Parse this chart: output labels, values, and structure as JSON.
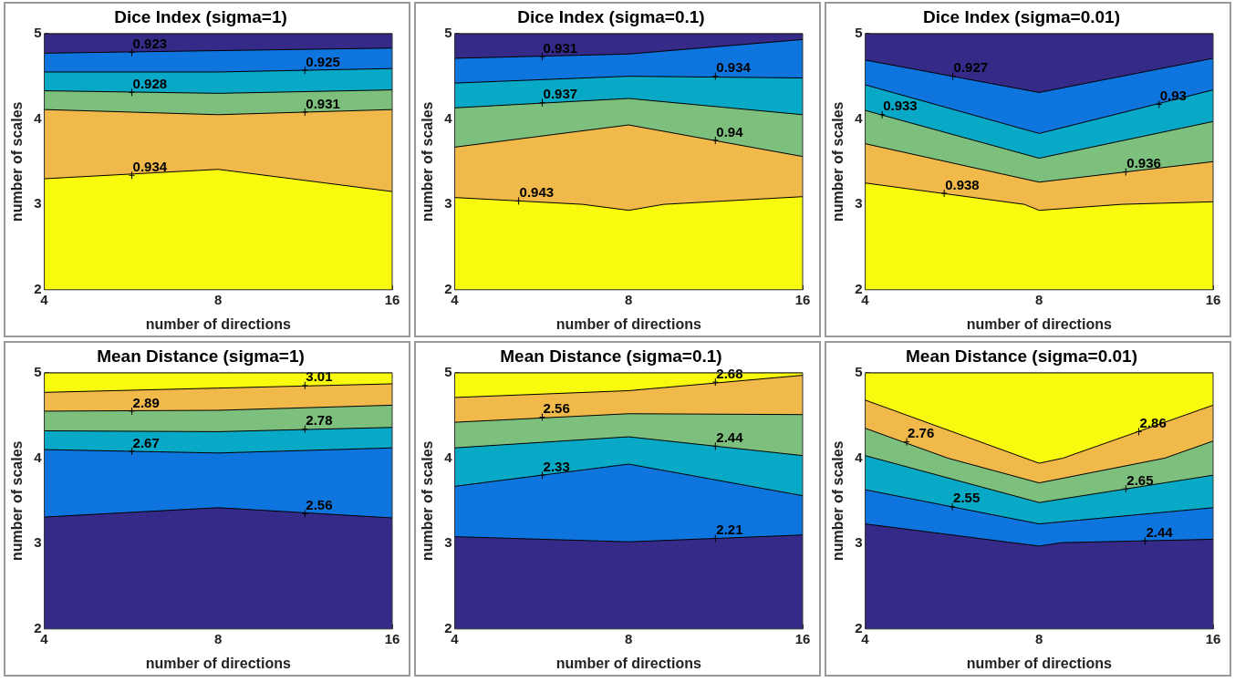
{
  "chart_data": [
    {
      "type": "area",
      "title": "Dice Index (sigma=1)",
      "xlabel": "number of directions",
      "ylabel": "number of scales",
      "log": "x",
      "xlim": [
        4,
        16
      ],
      "xticks": [
        4,
        8,
        16
      ],
      "ylim": [
        2,
        5
      ],
      "yticks": [
        2,
        3,
        4,
        5
      ],
      "grid": false,
      "legend": false,
      "series": [
        {
          "color": "#f9fb0e",
          "x": [
            4,
            8,
            16
          ],
          "values": [
            3.3,
            3.41,
            3.15
          ]
        },
        {
          "color": "#f1b84a",
          "x": [
            4,
            8,
            16
          ],
          "values": [
            4.11,
            4.05,
            4.11
          ]
        },
        {
          "color": "#7dbf7c",
          "x": [
            4,
            8,
            16
          ],
          "values": [
            4.33,
            4.3,
            4.34
          ]
        },
        {
          "color": "#07a9c6",
          "x": [
            4,
            8,
            16
          ],
          "values": [
            4.55,
            4.55,
            4.59
          ]
        },
        {
          "color": "#0e74de",
          "x": [
            4,
            8,
            16
          ],
          "values": [
            4.77,
            4.8,
            4.83
          ]
        },
        {
          "color": "#352a87",
          "x": [
            4,
            8,
            16
          ],
          "values": [
            5,
            5,
            5
          ]
        }
      ],
      "annotations": [
        {
          "text": "0.923",
          "x": 5.67,
          "y": 4.78
        },
        {
          "text": "0.925",
          "x": 11.3,
          "y": 4.57
        },
        {
          "text": "0.928",
          "x": 5.67,
          "y": 4.31
        },
        {
          "text": "0.931",
          "x": 11.3,
          "y": 4.08
        },
        {
          "text": "0.934",
          "x": 5.67,
          "y": 3.34
        }
      ]
    },
    {
      "type": "area",
      "title": "Dice Index (sigma=0.1)",
      "xlabel": "number of directions",
      "ylabel": "number of scales",
      "log": "x",
      "xlim": [
        4,
        16
      ],
      "xticks": [
        4,
        8,
        16
      ],
      "ylim": [
        2,
        5
      ],
      "yticks": [
        2,
        3,
        4,
        5
      ],
      "grid": false,
      "legend": false,
      "series": [
        {
          "color": "#f9fb0e",
          "x": [
            4,
            6.66,
            8,
            9.2,
            16
          ],
          "values": [
            3.08,
            3.0,
            2.93,
            3.0,
            3.09
          ]
        },
        {
          "color": "#f1b84a",
          "x": [
            4,
            8,
            16
          ],
          "values": [
            3.67,
            3.93,
            3.56
          ]
        },
        {
          "color": "#7dbf7c",
          "x": [
            4,
            8,
            16
          ],
          "values": [
            4.13,
            4.24,
            4.05
          ]
        },
        {
          "color": "#07a9c6",
          "x": [
            4,
            8,
            16
          ],
          "values": [
            4.42,
            4.5,
            4.48
          ]
        },
        {
          "color": "#0e74de",
          "x": [
            4,
            8,
            16
          ],
          "values": [
            4.71,
            4.76,
            4.93
          ]
        },
        {
          "color": "#352a87",
          "x": [
            4,
            8,
            16
          ],
          "values": [
            5,
            5,
            5
          ]
        }
      ],
      "annotations": [
        {
          "text": "0.931",
          "x": 5.67,
          "y": 4.73
        },
        {
          "text": "0.934",
          "x": 11.3,
          "y": 4.5
        },
        {
          "text": "0.937",
          "x": 5.67,
          "y": 4.19
        },
        {
          "text": "0.94",
          "x": 11.3,
          "y": 3.75
        },
        {
          "text": "0.943",
          "x": 5.16,
          "y": 3.04
        }
      ]
    },
    {
      "type": "area",
      "title": "Dice Index (sigma=0.01)",
      "xlabel": "number of directions",
      "ylabel": "number of scales",
      "log": "x",
      "xlim": [
        4,
        16
      ],
      "xticks": [
        4,
        8,
        16
      ],
      "ylim": [
        2,
        5
      ],
      "yticks": [
        2,
        3,
        4,
        5
      ],
      "grid": false,
      "legend": false,
      "series": [
        {
          "color": "#f9fb0e",
          "x": [
            4,
            7.54,
            8,
            11.1,
            16
          ],
          "values": [
            3.25,
            3.0,
            2.93,
            3.0,
            3.03
          ]
        },
        {
          "color": "#f1b84a",
          "x": [
            4,
            8,
            16
          ],
          "values": [
            3.71,
            3.26,
            3.5
          ]
        },
        {
          "color": "#7dbf7c",
          "x": [
            4,
            8,
            16
          ],
          "values": [
            4.1,
            3.54,
            3.97
          ]
        },
        {
          "color": "#07a9c6",
          "x": [
            4,
            8,
            16
          ],
          "values": [
            4.4,
            3.83,
            4.34
          ]
        },
        {
          "color": "#0e74de",
          "x": [
            4,
            8,
            16
          ],
          "values": [
            4.69,
            4.31,
            4.71
          ]
        },
        {
          "color": "#352a87",
          "x": [
            4,
            8,
            16
          ],
          "values": [
            5,
            5,
            5
          ]
        }
      ],
      "annotations": [
        {
          "text": "0.927",
          "x": 5.67,
          "y": 4.5
        },
        {
          "text": "0.93",
          "x": 12.9,
          "y": 4.17
        },
        {
          "text": "0.933",
          "x": 4.28,
          "y": 4.05
        },
        {
          "text": "0.936",
          "x": 11.3,
          "y": 3.38
        },
        {
          "text": "0.938",
          "x": 5.48,
          "y": 3.13
        }
      ]
    },
    {
      "type": "area",
      "title": "Mean Distance (sigma=1)",
      "xlabel": "number of directions",
      "ylabel": "number of scales",
      "log": "x",
      "xlim": [
        4,
        16
      ],
      "xticks": [
        4,
        8,
        16
      ],
      "ylim": [
        2,
        5
      ],
      "yticks": [
        2,
        3,
        4,
        5
      ],
      "grid": false,
      "legend": false,
      "series": [
        {
          "color": "#352a87",
          "x": [
            4,
            8,
            16
          ],
          "values": [
            3.31,
            3.42,
            3.3
          ]
        },
        {
          "color": "#0e74de",
          "x": [
            4,
            8,
            16
          ],
          "values": [
            4.1,
            4.06,
            4.12
          ]
        },
        {
          "color": "#07a9c6",
          "x": [
            4,
            8,
            16
          ],
          "values": [
            4.32,
            4.31,
            4.36
          ]
        },
        {
          "color": "#7dbf7c",
          "x": [
            4,
            8,
            16
          ],
          "values": [
            4.55,
            4.56,
            4.62
          ]
        },
        {
          "color": "#f1b84a",
          "x": [
            4,
            8,
            16
          ],
          "values": [
            4.77,
            4.82,
            4.87
          ]
        },
        {
          "color": "#f9fb0e",
          "x": [
            4,
            8,
            16
          ],
          "values": [
            5,
            5,
            5
          ]
        }
      ],
      "annotations": [
        {
          "text": "2.56",
          "x": 11.3,
          "y": 3.35
        },
        {
          "text": "2.67",
          "x": 5.67,
          "y": 4.08
        },
        {
          "text": "2.78",
          "x": 11.3,
          "y": 4.34
        },
        {
          "text": "2.89",
          "x": 5.67,
          "y": 4.55
        },
        {
          "text": "3.01",
          "x": 11.3,
          "y": 4.85
        }
      ]
    },
    {
      "type": "area",
      "title": "Mean Distance (sigma=0.1)",
      "xlabel": "number of directions",
      "ylabel": "number of scales",
      "log": "x",
      "xlim": [
        4,
        16
      ],
      "xticks": [
        4,
        8,
        16
      ],
      "ylim": [
        2,
        5
      ],
      "yticks": [
        2,
        3,
        4,
        5
      ],
      "grid": false,
      "legend": false,
      "series": [
        {
          "color": "#352a87",
          "x": [
            4,
            8,
            16
          ],
          "values": [
            3.08,
            3.02,
            3.1
          ]
        },
        {
          "color": "#0e74de",
          "x": [
            4,
            8,
            16
          ],
          "values": [
            3.67,
            3.93,
            3.56
          ]
        },
        {
          "color": "#07a9c6",
          "x": [
            4,
            8,
            16
          ],
          "values": [
            4.12,
            4.25,
            4.03
          ]
        },
        {
          "color": "#7dbf7c",
          "x": [
            4,
            8,
            16
          ],
          "values": [
            4.42,
            4.52,
            4.51
          ]
        },
        {
          "color": "#f1b84a",
          "x": [
            4,
            8,
            16
          ],
          "values": [
            4.71,
            4.79,
            4.97
          ]
        },
        {
          "color": "#f9fb0e",
          "x": [
            4,
            8,
            16
          ],
          "values": [
            5,
            5,
            5
          ]
        }
      ],
      "annotations": [
        {
          "text": "2.21",
          "x": 11.3,
          "y": 3.06
        },
        {
          "text": "2.33",
          "x": 5.67,
          "y": 3.8
        },
        {
          "text": "2.44",
          "x": 11.3,
          "y": 4.14
        },
        {
          "text": "2.56",
          "x": 5.67,
          "y": 4.48
        },
        {
          "text": "2.68",
          "x": 11.3,
          "y": 4.89
        }
      ]
    },
    {
      "type": "area",
      "title": "Mean Distance (sigma=0.01)",
      "xlabel": "number of directions",
      "ylabel": "number of scales",
      "log": "x",
      "xlim": [
        4,
        16
      ],
      "xticks": [
        4,
        8,
        16
      ],
      "ylim": [
        2,
        5
      ],
      "yticks": [
        2,
        3,
        4,
        5
      ],
      "grid": false,
      "legend": false,
      "series": [
        {
          "color": "#352a87",
          "x": [
            4,
            8,
            8.75,
            16
          ],
          "values": [
            3.23,
            2.97,
            3.01,
            3.05
          ]
        },
        {
          "color": "#0e74de",
          "x": [
            4,
            8,
            16
          ],
          "values": [
            3.63,
            3.23,
            3.42
          ]
        },
        {
          "color": "#07a9c6",
          "x": [
            4,
            8,
            16
          ],
          "values": [
            4.03,
            3.48,
            3.8
          ]
        },
        {
          "color": "#7dbf7c",
          "x": [
            4,
            5.56,
            8,
            13.2,
            16
          ],
          "values": [
            4.35,
            4.0,
            3.71,
            4.0,
            4.2
          ]
        },
        {
          "color": "#f1b84a",
          "x": [
            4,
            8,
            8.8,
            16
          ],
          "values": [
            4.68,
            3.94,
            4.0,
            4.62
          ]
        },
        {
          "color": "#f9fb0e",
          "x": [
            4,
            8,
            16
          ],
          "values": [
            5,
            5,
            5
          ]
        }
      ],
      "annotations": [
        {
          "text": "2.44",
          "x": 12.2,
          "y": 3.03
        },
        {
          "text": "2.55",
          "x": 5.66,
          "y": 3.43
        },
        {
          "text": "2.65",
          "x": 11.3,
          "y": 3.64
        },
        {
          "text": "2.76",
          "x": 4.72,
          "y": 4.19
        },
        {
          "text": "2.86",
          "x": 11.9,
          "y": 4.31
        }
      ]
    }
  ]
}
